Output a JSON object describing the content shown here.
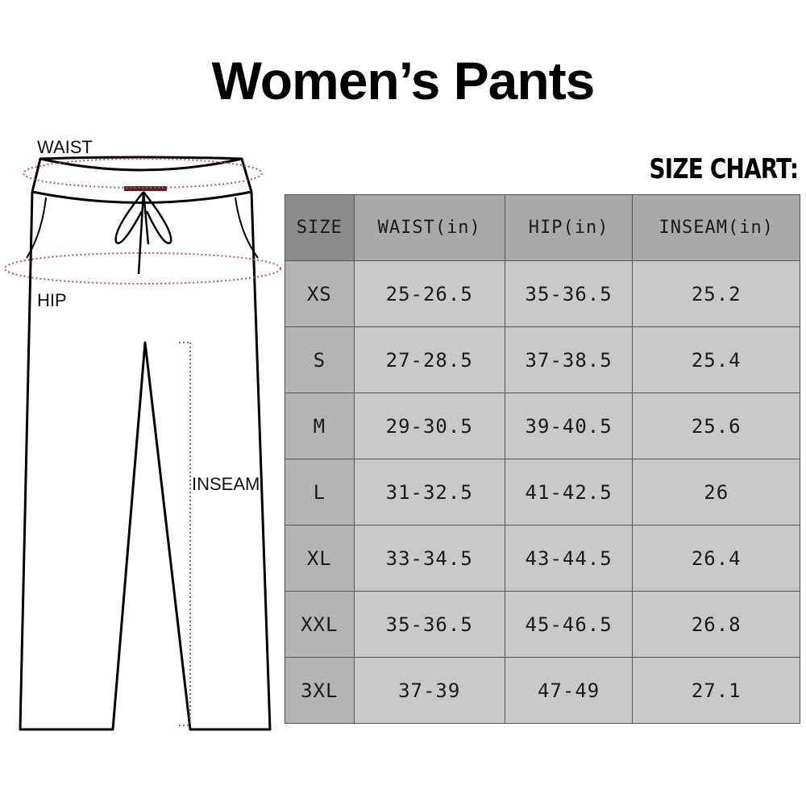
{
  "title": "Women’s Pants",
  "chart_label": "SIZE CHART:",
  "diagram": {
    "waist_label": "WAIST",
    "hip_label": "HIP",
    "inseam_label": "INSEAM",
    "measure_line_color": "#c0505a"
  },
  "table": {
    "headers": [
      "SIZE",
      "WAIST(in)",
      "HIP(in)",
      "INSEAM(in)"
    ],
    "rows": [
      [
        "XS",
        "25-26.5",
        "35-36.5",
        "25.2"
      ],
      [
        "S",
        "27-28.5",
        "37-38.5",
        "25.4"
      ],
      [
        "M",
        "29-30.5",
        "39-40.5",
        "25.6"
      ],
      [
        "L",
        "31-32.5",
        "41-42.5",
        "26"
      ],
      [
        "XL",
        "33-34.5",
        "43-44.5",
        "26.4"
      ],
      [
        "XXL",
        "35-36.5",
        "45-46.5",
        "26.8"
      ],
      [
        "3XL",
        "37-39",
        "47-49",
        "27.1"
      ]
    ]
  }
}
